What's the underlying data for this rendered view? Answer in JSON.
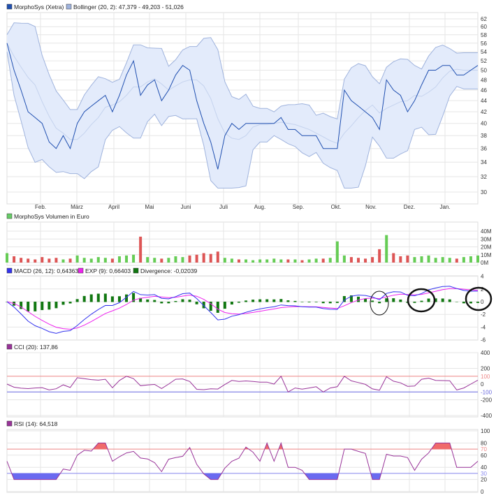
{
  "chart_data": [
    {
      "type": "line",
      "legend": [
        {
          "label": "MorphoSys (Xetra)",
          "color": "#1f4fb0"
        },
        {
          "label": "Bollinger (20, 2): 47,379 - 49,203 - 51,026",
          "color": "#9fb3dd"
        }
      ],
      "x_ticks": [
        "Feb.",
        "März",
        "April",
        "Mai",
        "Juni",
        "Juli",
        "Aug.",
        "Sep.",
        "Okt.",
        "Nov.",
        "Dez.",
        "Jan."
      ],
      "y_ticks": [
        "62",
        "60",
        "58",
        "56",
        "54",
        "52",
        "50",
        "48",
        "46",
        "44",
        "42",
        "40",
        "38",
        "36",
        "34",
        "32",
        "30"
      ],
      "ylim": [
        30,
        62
      ],
      "y_scale": "log",
      "grid": true,
      "price": [
        56,
        50,
        46,
        42,
        41,
        40,
        37,
        36,
        38,
        36,
        40,
        42,
        43,
        44,
        45,
        42,
        45,
        49,
        52,
        45,
        47,
        48,
        44,
        46,
        49,
        51,
        50,
        44,
        40,
        37,
        33,
        38,
        40,
        39,
        40,
        40,
        40,
        40,
        40,
        41,
        39,
        39,
        38,
        38,
        38,
        36,
        36,
        36,
        46,
        44,
        43,
        42,
        41,
        39,
        48,
        46,
        45,
        42,
        44,
        47,
        50,
        50,
        51,
        51,
        49,
        49,
        50,
        51
      ]
    },
    {
      "type": "bar",
      "legend": [
        {
          "label": "MorphoSys Volumen in Euro",
          "color": "#6c6"
        }
      ],
      "y_ticks": [
        "40M",
        "30M",
        "20M",
        "10M",
        "0M"
      ],
      "ylim": [
        0,
        40
      ],
      "colors": {
        "up": "#66cc55",
        "down": "#dd5555"
      },
      "volume_millions": [
        12,
        8,
        6,
        5,
        4,
        7,
        5,
        6,
        4,
        5,
        9,
        6,
        5,
        7,
        6,
        5,
        8,
        9,
        10,
        33,
        7,
        6,
        5,
        6,
        8,
        7,
        9,
        10,
        12,
        11,
        14,
        6,
        5,
        4,
        4,
        3,
        4,
        4,
        5,
        4,
        4,
        4,
        3,
        4,
        5,
        5,
        6,
        27,
        9,
        7,
        6,
        5,
        7,
        17,
        35,
        12,
        8,
        9,
        7,
        8,
        9,
        6,
        7,
        6,
        5,
        7,
        8,
        9
      ]
    },
    {
      "type": "line",
      "legend": [
        {
          "label": "MACD (26, 12): 0,64363",
          "color": "#3333ee"
        },
        {
          "label": "EXP (9): 0,66403",
          "color": "#ee22ee"
        },
        {
          "label": "Divergence: -0,02039",
          "color": "#117711"
        }
      ],
      "y_ticks": [
        "4",
        "2",
        "0",
        "-2",
        "-4",
        "-6"
      ],
      "ylim": [
        -6,
        4
      ]
    },
    {
      "type": "line",
      "legend": [
        {
          "label": "CCI (20): 137,86",
          "color": "#993399"
        }
      ],
      "y_ticks": [
        "400",
        "200",
        "0",
        "-200",
        "-400"
      ],
      "ref_lines": [
        {
          "label": "100",
          "color": "#ee8888"
        },
        {
          "label": "-100",
          "color": "#6666dd"
        }
      ],
      "ylim": [
        -400,
        400
      ]
    },
    {
      "type": "line",
      "legend": [
        {
          "label": "RSI (14): 64,518",
          "color": "#993399"
        }
      ],
      "y_ticks": [
        "100",
        "80",
        "60",
        "40",
        "20",
        "0"
      ],
      "ref_lines": [
        {
          "label": "70",
          "color": "#ee8888"
        },
        {
          "label": "30",
          "color": "#8888ee"
        }
      ],
      "ylim": [
        0,
        100
      ]
    }
  ]
}
